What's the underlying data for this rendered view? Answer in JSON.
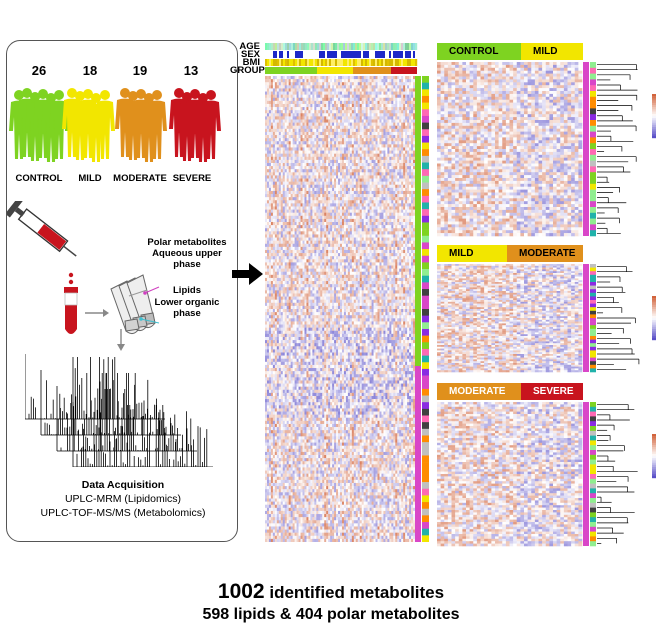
{
  "groups": [
    {
      "name": "CONTROL",
      "count": "26",
      "color": "#7ed321"
    },
    {
      "name": "MILD",
      "count": "18",
      "color": "#f2e600"
    },
    {
      "name": "MODERATE",
      "count": "19",
      "color": "#e0901c"
    },
    {
      "name": "SEVERE",
      "count": "13",
      "color": "#c8141e"
    }
  ],
  "extraction": {
    "polar_label": "Polar metabolites",
    "aqueous_label_1": "Aqueous upper",
    "aqueous_label_2": "phase",
    "lipids_label": "Lipids",
    "organic_label_1": "Lower organic",
    "organic_label_2": "phase"
  },
  "acquisition": {
    "title": "Data Acquisition",
    "line1": "UPLC-MRM (Lipidomics)",
    "line2": "UPLC-TOF-MS/MS (Metabolomics)"
  },
  "annotation_tracks": [
    "AGE",
    "SEX",
    "BMI",
    "GROUP"
  ],
  "comparisons": [
    {
      "left": "CONTROL",
      "right": "MILD"
    },
    {
      "left": "MILD",
      "right": "MODERATE"
    },
    {
      "left": "MODERATE",
      "right": "SEVERE"
    }
  ],
  "summary": {
    "count": "1002",
    "count_label": "identified metabolites",
    "line2": "598 lipids & 404 polar metabolites"
  },
  "palette": {
    "heat_high": "#d2643c",
    "heat_low": "#5a50c8",
    "heat_mid": "#ffffff",
    "sex_blue": "#1e28c8",
    "panel_border": "#555555"
  }
}
